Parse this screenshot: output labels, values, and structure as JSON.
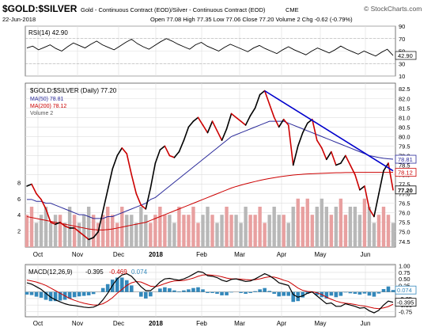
{
  "header": {
    "symbol": "$GOLD:$SILVER",
    "description": "Gold - Continuous Contract (EOD)/Silver - Continuous Contract (EOD)",
    "exchange": "CME",
    "date": "22-Jun-2018",
    "quote": "Open 77.08  High 77.35  Low 77.06  Close 77.20  Volume 2  Chg -0.62 (-0.79%)",
    "brand": "© StockCharts.com"
  },
  "colors": {
    "price": "#000000",
    "price_down": "#cc0000",
    "ma50": "#2a2a9a",
    "ma200": "#cc0000",
    "trendline": "#0000cc",
    "volume_up": "#e8a0a0",
    "volume_down": "#b8b8b8",
    "histogram": "#3388bb",
    "signal": "#cc0000",
    "macd": "#000000",
    "grid": "#dddddd"
  },
  "chart_data": [
    {
      "type": "line",
      "panel": "rsi",
      "label": "RSI(14) 42.90",
      "ylim": [
        10,
        90
      ],
      "y_ticks": [
        90,
        70,
        50,
        30,
        10
      ],
      "current_label": "42.90",
      "reference_lines": [
        70,
        30
      ],
      "series": [
        {
          "values": [
            55,
            58,
            52,
            56,
            60,
            54,
            50,
            57,
            63,
            59,
            55,
            61,
            66,
            60,
            56,
            52,
            58,
            64,
            69,
            62,
            57,
            53,
            59,
            65,
            70,
            66,
            61,
            57,
            53,
            60,
            64,
            58,
            54,
            50,
            56,
            61,
            57,
            53,
            49,
            55,
            59,
            54,
            50,
            46,
            52,
            57,
            52,
            48,
            44,
            50,
            55,
            51,
            47,
            52,
            58,
            53,
            49,
            45,
            50,
            46,
            42,
            48,
            53,
            43
          ]
        }
      ]
    },
    {
      "type": "line",
      "panel": "price",
      "title": "$GOLD:$SILVER (Daily) 77.20",
      "legend": [
        "MA(50) 78.81",
        "MA(200) 78.12",
        "Volume 2"
      ],
      "x_labels": [
        "Oct",
        "Nov",
        "Dec",
        "2018",
        "Feb",
        "Mar",
        "Apr",
        "May",
        "Jun"
      ],
      "ylim": [
        74.2,
        82.8
      ],
      "y_ticks": [
        82.5,
        82.0,
        81.5,
        81.0,
        80.5,
        80.0,
        79.5,
        79.0,
        78.5,
        78.0,
        77.5,
        77.0,
        76.5,
        76.0,
        75.5,
        75.0,
        74.5
      ],
      "value_tags": [
        "78.81",
        "78.12",
        "77.20"
      ],
      "volume_ticks": [
        "8",
        "6",
        "4",
        "2"
      ],
      "volume_ylim": [
        0,
        10
      ],
      "series": [
        {
          "name": "$GOLD:$SILVER (Daily) 77.20",
          "values": [
            77.4,
            77.5,
            77.0,
            76.7,
            76.2,
            75.5,
            75.4,
            75.5,
            75.3,
            75.2,
            75.2,
            75.0,
            74.8,
            74.6,
            74.7,
            75.0,
            76.1,
            77.2,
            78.3,
            79.0,
            79.4,
            79.1,
            78.0,
            77.0,
            76.4,
            76.2,
            77.3,
            78.6,
            79.3,
            79.5,
            79.0,
            78.9,
            79.2,
            79.8,
            80.5,
            80.8,
            81.0,
            80.6,
            80.2,
            80.8,
            80.3,
            79.8,
            80.4,
            81.2,
            81.0,
            80.8,
            80.6,
            81.1,
            81.5,
            82.2,
            82.4,
            81.7,
            81.0,
            80.5,
            80.9,
            80.6,
            78.5,
            79.5,
            80.2,
            80.7,
            80.9,
            79.8,
            79.4,
            78.8,
            79.2,
            78.5,
            78.6,
            79.0,
            78.5,
            78.0,
            77.2,
            77.4,
            76.2,
            75.8,
            77.0,
            78.2,
            78.6,
            77.2
          ]
        },
        {
          "name": "MA(50) 78.81",
          "values": [
            76.7,
            76.7,
            76.6,
            76.6,
            76.5,
            76.5,
            76.4,
            76.3,
            76.2,
            76.1,
            76.0,
            75.9,
            75.9,
            75.8,
            75.7,
            75.7,
            75.7,
            75.8,
            75.8,
            75.9,
            76.0,
            76.1,
            76.2,
            76.3,
            76.4,
            76.5,
            76.7,
            76.8,
            77.0,
            77.2,
            77.4,
            77.6,
            77.8,
            78.0,
            78.2,
            78.4,
            78.6,
            78.8,
            79.0,
            79.2,
            79.4,
            79.6,
            79.8,
            80.0,
            80.1,
            80.2,
            80.3,
            80.4,
            80.5,
            80.6,
            80.7,
            80.8,
            80.8,
            80.8,
            80.8,
            80.7,
            80.6,
            80.5,
            80.4,
            80.3,
            80.2,
            80.1,
            80.0,
            79.9,
            79.8,
            79.7,
            79.6,
            79.5,
            79.4,
            79.3,
            79.2,
            79.1,
            79.0,
            78.95,
            78.9,
            78.86,
            78.83,
            78.81
          ]
        },
        {
          "name": "MA(200) 78.12",
          "values": [
            75.8,
            75.75,
            75.7,
            75.65,
            75.6,
            75.55,
            75.5,
            75.45,
            75.4,
            75.35,
            75.3,
            75.25,
            75.2,
            75.15,
            75.12,
            75.1,
            75.1,
            75.12,
            75.15,
            75.2,
            75.25,
            75.3,
            75.35,
            75.4,
            75.45,
            75.5,
            75.6,
            75.7,
            75.8,
            75.9,
            76.0,
            76.1,
            76.2,
            76.3,
            76.4,
            76.5,
            76.6,
            76.7,
            76.8,
            76.9,
            77.0,
            77.1,
            77.2,
            77.3,
            77.38,
            77.45,
            77.52,
            77.58,
            77.64,
            77.7,
            77.75,
            77.8,
            77.84,
            77.88,
            77.92,
            77.95,
            77.98,
            78.0,
            78.02,
            78.04,
            78.05,
            78.06,
            78.07,
            78.08,
            78.09,
            78.1,
            78.1,
            78.11,
            78.11,
            78.12,
            78.12,
            78.12,
            78.12,
            78.12,
            78.12,
            78.12,
            78.12,
            78.12
          ]
        },
        {
          "name": "Volume 2",
          "values": [
            4,
            5,
            3,
            4,
            5,
            3,
            4,
            4,
            3,
            5,
            4,
            3,
            4,
            5,
            4,
            3,
            4,
            5,
            4,
            3,
            5,
            4,
            4,
            3,
            5,
            4,
            3,
            4,
            5,
            4,
            4,
            3,
            5,
            4,
            4,
            5,
            3,
            4,
            5,
            4,
            3,
            4,
            5,
            4,
            4,
            3,
            5,
            4,
            4,
            5,
            3,
            4,
            5,
            4,
            4,
            3,
            5,
            6,
            5,
            6,
            4,
            5,
            6,
            5,
            4,
            5,
            6,
            4,
            5,
            5,
            4,
            6,
            5,
            3,
            4,
            5,
            4,
            3
          ]
        }
      ],
      "trendline": {
        "from": [
          50,
          82.4
        ],
        "to": [
          77,
          78.2
        ]
      }
    },
    {
      "type": "line",
      "panel": "macd",
      "legend": [
        "MACD(12,26,9)",
        "-0.395",
        "-0.469",
        "0.074"
      ],
      "x_labels": [
        "Oct",
        "Nov",
        "Dec",
        "2018",
        "Feb",
        "Mar",
        "Apr",
        "May",
        "Jun"
      ],
      "ylim": [
        -0.95,
        1.05
      ],
      "y_ticks": [
        1.0,
        0.75,
        0.5,
        0.25,
        0.0,
        -0.25,
        -0.5,
        -0.75
      ],
      "value_tags": [
        "0.074",
        "-0.395"
      ],
      "series": [
        {
          "name": "MACD",
          "values": [
            0.35,
            0.3,
            0.2,
            0.1,
            -0.05,
            -0.2,
            -0.3,
            -0.38,
            -0.45,
            -0.5,
            -0.52,
            -0.55,
            -0.58,
            -0.6,
            -0.58,
            -0.5,
            -0.3,
            -0.05,
            0.25,
            0.5,
            0.65,
            0.7,
            0.6,
            0.4,
            0.2,
            0.05,
            0.05,
            0.2,
            0.38,
            0.5,
            0.52,
            0.48,
            0.45,
            0.5,
            0.58,
            0.68,
            0.78,
            0.75,
            0.62,
            0.6,
            0.55,
            0.45,
            0.4,
            0.48,
            0.5,
            0.45,
            0.4,
            0.42,
            0.5,
            0.6,
            0.7,
            0.62,
            0.5,
            0.35,
            0.3,
            0.25,
            -0.1,
            -0.2,
            -0.15,
            -0.05,
            0.0,
            -0.15,
            -0.3,
            -0.45,
            -0.42,
            -0.55,
            -0.55,
            -0.45,
            -0.5,
            -0.55,
            -0.62,
            -0.6,
            -0.72,
            -0.8,
            -0.7,
            -0.5,
            -0.35,
            -0.395
          ]
        },
        {
          "name": "Signal",
          "values": [
            0.45,
            0.42,
            0.38,
            0.32,
            0.25,
            0.15,
            0.05,
            -0.05,
            -0.15,
            -0.25,
            -0.32,
            -0.38,
            -0.43,
            -0.47,
            -0.5,
            -0.5,
            -0.45,
            -0.35,
            -0.22,
            -0.05,
            0.1,
            0.25,
            0.35,
            0.4,
            0.38,
            0.3,
            0.22,
            0.2,
            0.25,
            0.32,
            0.38,
            0.42,
            0.43,
            0.44,
            0.48,
            0.53,
            0.6,
            0.65,
            0.66,
            0.64,
            0.62,
            0.58,
            0.53,
            0.5,
            0.5,
            0.49,
            0.47,
            0.46,
            0.47,
            0.5,
            0.55,
            0.58,
            0.57,
            0.52,
            0.45,
            0.4,
            0.28,
            0.15,
            0.06,
            0.02,
            0.01,
            -0.03,
            -0.1,
            -0.2,
            -0.28,
            -0.35,
            -0.4,
            -0.43,
            -0.45,
            -0.48,
            -0.52,
            -0.54,
            -0.58,
            -0.62,
            -0.64,
            -0.61,
            -0.56,
            -0.469
          ]
        }
      ]
    }
  ]
}
